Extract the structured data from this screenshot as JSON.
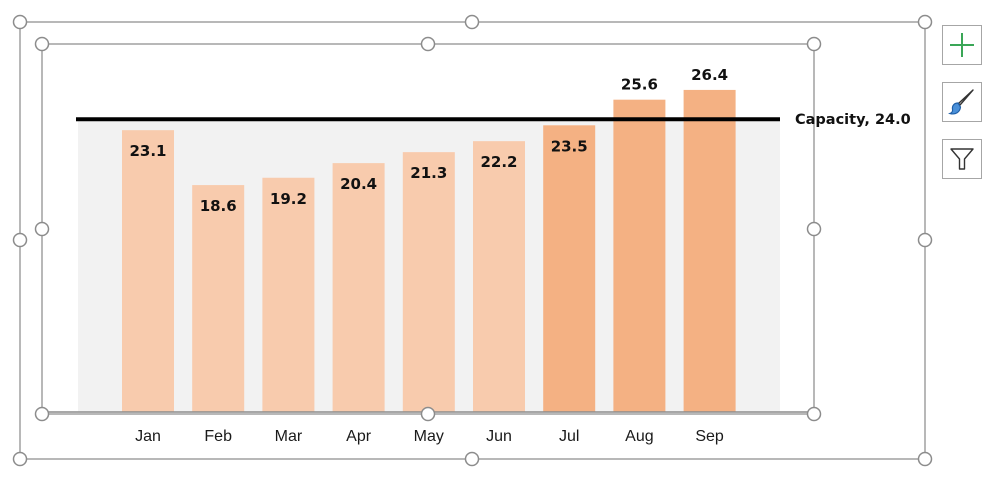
{
  "chart_data": {
    "type": "bar",
    "categories": [
      "Jan",
      "Feb",
      "Mar",
      "Apr",
      "May",
      "Jun",
      "Jul",
      "Aug",
      "Sep"
    ],
    "values": [
      23.1,
      18.6,
      19.2,
      20.4,
      21.3,
      22.2,
      23.5,
      25.6,
      26.4
    ],
    "ylim": [
      0,
      28
    ],
    "grid": false,
    "reference_line": {
      "value": 24.0,
      "label": "Capacity, 24.0",
      "color": "#000000"
    },
    "colors": {
      "light_bar": "#f8cbad",
      "dark_bar": "#f4b183",
      "plot_background": "#f2f2f2"
    },
    "highlighted_categories": [
      "Jul",
      "Aug",
      "Sep"
    ]
  },
  "toolbar": {
    "chart_elements": {
      "icon": "plus-icon"
    },
    "chart_styles": {
      "icon": "paintbrush-icon"
    },
    "chart_filters": {
      "icon": "filter-icon"
    }
  }
}
